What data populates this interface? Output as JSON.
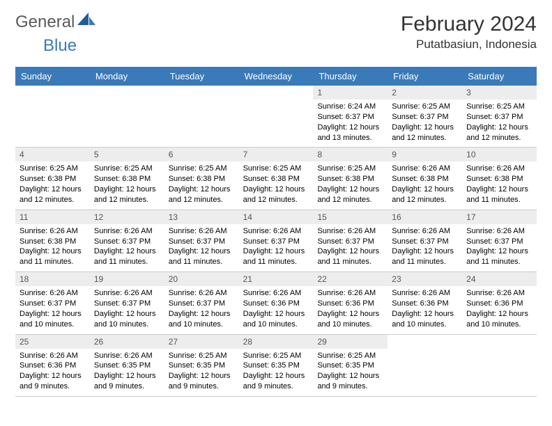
{
  "logo": {
    "general": "General",
    "blue": "Blue"
  },
  "title": {
    "month": "February 2024",
    "location": "Putatbasiun, Indonesia"
  },
  "colors": {
    "header_bg": "#3a7ab8",
    "header_text": "#ffffff",
    "daynum_bg": "#ededed",
    "daynum_text": "#555555",
    "body_text": "#000000",
    "rule": "#cccccc",
    "logo_gray": "#5a5a5a",
    "logo_blue": "#3a7ab8"
  },
  "fonts": {
    "month_title_size": 30,
    "location_size": 17,
    "day_header_size": 13,
    "daynum_size": 12,
    "cell_text_size": 11
  },
  "day_headers": [
    "Sunday",
    "Monday",
    "Tuesday",
    "Wednesday",
    "Thursday",
    "Friday",
    "Saturday"
  ],
  "weeks": [
    [
      {
        "n": "",
        "sr": "",
        "ss": "",
        "dl": ""
      },
      {
        "n": "",
        "sr": "",
        "ss": "",
        "dl": ""
      },
      {
        "n": "",
        "sr": "",
        "ss": "",
        "dl": ""
      },
      {
        "n": "",
        "sr": "",
        "ss": "",
        "dl": ""
      },
      {
        "n": "1",
        "sr": "Sunrise: 6:24 AM",
        "ss": "Sunset: 6:37 PM",
        "dl": "Daylight: 12 hours and 13 minutes."
      },
      {
        "n": "2",
        "sr": "Sunrise: 6:25 AM",
        "ss": "Sunset: 6:37 PM",
        "dl": "Daylight: 12 hours and 12 minutes."
      },
      {
        "n": "3",
        "sr": "Sunrise: 6:25 AM",
        "ss": "Sunset: 6:37 PM",
        "dl": "Daylight: 12 hours and 12 minutes."
      }
    ],
    [
      {
        "n": "4",
        "sr": "Sunrise: 6:25 AM",
        "ss": "Sunset: 6:38 PM",
        "dl": "Daylight: 12 hours and 12 minutes."
      },
      {
        "n": "5",
        "sr": "Sunrise: 6:25 AM",
        "ss": "Sunset: 6:38 PM",
        "dl": "Daylight: 12 hours and 12 minutes."
      },
      {
        "n": "6",
        "sr": "Sunrise: 6:25 AM",
        "ss": "Sunset: 6:38 PM",
        "dl": "Daylight: 12 hours and 12 minutes."
      },
      {
        "n": "7",
        "sr": "Sunrise: 6:25 AM",
        "ss": "Sunset: 6:38 PM",
        "dl": "Daylight: 12 hours and 12 minutes."
      },
      {
        "n": "8",
        "sr": "Sunrise: 6:25 AM",
        "ss": "Sunset: 6:38 PM",
        "dl": "Daylight: 12 hours and 12 minutes."
      },
      {
        "n": "9",
        "sr": "Sunrise: 6:26 AM",
        "ss": "Sunset: 6:38 PM",
        "dl": "Daylight: 12 hours and 12 minutes."
      },
      {
        "n": "10",
        "sr": "Sunrise: 6:26 AM",
        "ss": "Sunset: 6:38 PM",
        "dl": "Daylight: 12 hours and 11 minutes."
      }
    ],
    [
      {
        "n": "11",
        "sr": "Sunrise: 6:26 AM",
        "ss": "Sunset: 6:38 PM",
        "dl": "Daylight: 12 hours and 11 minutes."
      },
      {
        "n": "12",
        "sr": "Sunrise: 6:26 AM",
        "ss": "Sunset: 6:37 PM",
        "dl": "Daylight: 12 hours and 11 minutes."
      },
      {
        "n": "13",
        "sr": "Sunrise: 6:26 AM",
        "ss": "Sunset: 6:37 PM",
        "dl": "Daylight: 12 hours and 11 minutes."
      },
      {
        "n": "14",
        "sr": "Sunrise: 6:26 AM",
        "ss": "Sunset: 6:37 PM",
        "dl": "Daylight: 12 hours and 11 minutes."
      },
      {
        "n": "15",
        "sr": "Sunrise: 6:26 AM",
        "ss": "Sunset: 6:37 PM",
        "dl": "Daylight: 12 hours and 11 minutes."
      },
      {
        "n": "16",
        "sr": "Sunrise: 6:26 AM",
        "ss": "Sunset: 6:37 PM",
        "dl": "Daylight: 12 hours and 11 minutes."
      },
      {
        "n": "17",
        "sr": "Sunrise: 6:26 AM",
        "ss": "Sunset: 6:37 PM",
        "dl": "Daylight: 12 hours and 11 minutes."
      }
    ],
    [
      {
        "n": "18",
        "sr": "Sunrise: 6:26 AM",
        "ss": "Sunset: 6:37 PM",
        "dl": "Daylight: 12 hours and 10 minutes."
      },
      {
        "n": "19",
        "sr": "Sunrise: 6:26 AM",
        "ss": "Sunset: 6:37 PM",
        "dl": "Daylight: 12 hours and 10 minutes."
      },
      {
        "n": "20",
        "sr": "Sunrise: 6:26 AM",
        "ss": "Sunset: 6:37 PM",
        "dl": "Daylight: 12 hours and 10 minutes."
      },
      {
        "n": "21",
        "sr": "Sunrise: 6:26 AM",
        "ss": "Sunset: 6:36 PM",
        "dl": "Daylight: 12 hours and 10 minutes."
      },
      {
        "n": "22",
        "sr": "Sunrise: 6:26 AM",
        "ss": "Sunset: 6:36 PM",
        "dl": "Daylight: 12 hours and 10 minutes."
      },
      {
        "n": "23",
        "sr": "Sunrise: 6:26 AM",
        "ss": "Sunset: 6:36 PM",
        "dl": "Daylight: 12 hours and 10 minutes."
      },
      {
        "n": "24",
        "sr": "Sunrise: 6:26 AM",
        "ss": "Sunset: 6:36 PM",
        "dl": "Daylight: 12 hours and 10 minutes."
      }
    ],
    [
      {
        "n": "25",
        "sr": "Sunrise: 6:26 AM",
        "ss": "Sunset: 6:36 PM",
        "dl": "Daylight: 12 hours and 9 minutes."
      },
      {
        "n": "26",
        "sr": "Sunrise: 6:26 AM",
        "ss": "Sunset: 6:35 PM",
        "dl": "Daylight: 12 hours and 9 minutes."
      },
      {
        "n": "27",
        "sr": "Sunrise: 6:25 AM",
        "ss": "Sunset: 6:35 PM",
        "dl": "Daylight: 12 hours and 9 minutes."
      },
      {
        "n": "28",
        "sr": "Sunrise: 6:25 AM",
        "ss": "Sunset: 6:35 PM",
        "dl": "Daylight: 12 hours and 9 minutes."
      },
      {
        "n": "29",
        "sr": "Sunrise: 6:25 AM",
        "ss": "Sunset: 6:35 PM",
        "dl": "Daylight: 12 hours and 9 minutes."
      },
      {
        "n": "",
        "sr": "",
        "ss": "",
        "dl": ""
      },
      {
        "n": "",
        "sr": "",
        "ss": "",
        "dl": ""
      }
    ]
  ]
}
